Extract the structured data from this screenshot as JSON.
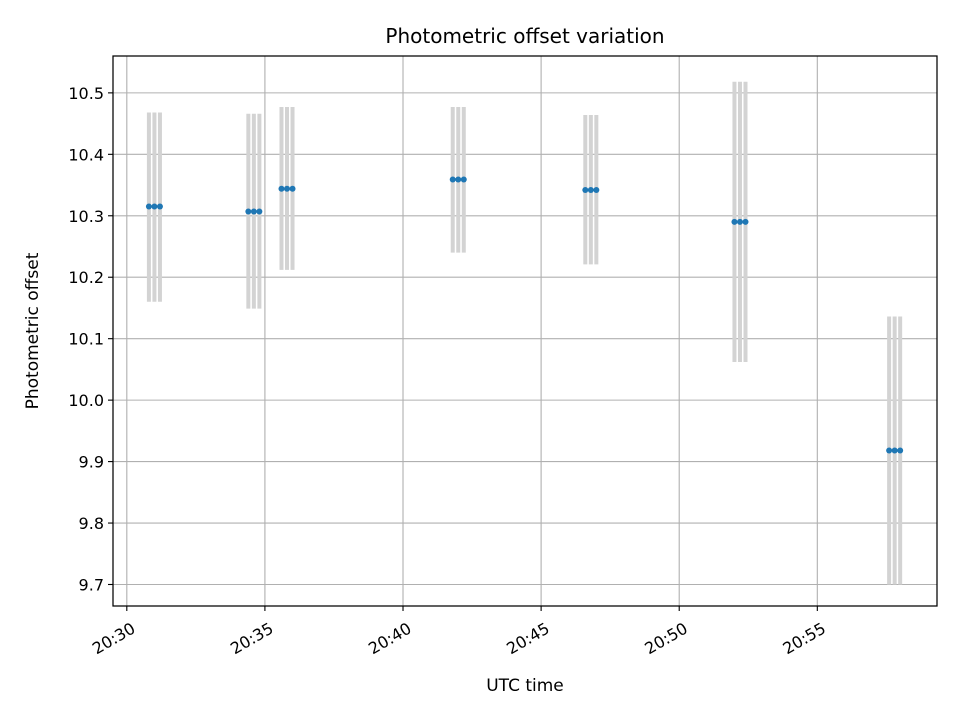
{
  "chart_data": {
    "type": "scatter",
    "title": "Photometric offset variation",
    "xlabel": "UTC time",
    "ylabel": "Photometric offset",
    "x_is_time": true,
    "xlim": [
      "20:29:30",
      "20:59:20"
    ],
    "ylim": [
      9.665,
      10.56
    ],
    "xticks": [
      "20:30",
      "20:35",
      "20:40",
      "20:45",
      "20:50",
      "20:55"
    ],
    "yticks": [
      9.7,
      9.8,
      9.9,
      10.0,
      10.1,
      10.2,
      10.3,
      10.4,
      10.5
    ],
    "ytick_labels": [
      "9.7",
      "9.8",
      "9.9",
      "10.0",
      "10.1",
      "10.2",
      "10.3",
      "10.4",
      "10.5"
    ],
    "grid": true,
    "point_color": "#1f77b4",
    "errorbar_color": "#d3d3d3",
    "groups": [
      {
        "x": [
          "20:30:48",
          "20:31:00",
          "20:31:12"
        ],
        "y": [
          10.315,
          10.315,
          10.315
        ],
        "err_low": [
          10.16,
          10.16,
          10.16
        ],
        "err_high": [
          10.468,
          10.468,
          10.468
        ]
      },
      {
        "x": [
          "20:34:24",
          "20:34:36",
          "20:34:48"
        ],
        "y": [
          10.307,
          10.307,
          10.307
        ],
        "err_low": [
          10.149,
          10.149,
          10.149
        ],
        "err_high": [
          10.466,
          10.466,
          10.466
        ]
      },
      {
        "x": [
          "20:35:36",
          "20:35:48",
          "20:36:00"
        ],
        "y": [
          10.344,
          10.344,
          10.344
        ],
        "err_low": [
          10.212,
          10.212,
          10.212
        ],
        "err_high": [
          10.477,
          10.477,
          10.477
        ]
      },
      {
        "x": [
          "20:41:48",
          "20:42:00",
          "20:42:12"
        ],
        "y": [
          10.359,
          10.359,
          10.359
        ],
        "err_low": [
          10.24,
          10.24,
          10.24
        ],
        "err_high": [
          10.477,
          10.477,
          10.477
        ]
      },
      {
        "x": [
          "20:46:36",
          "20:46:48",
          "20:47:00"
        ],
        "y": [
          10.342,
          10.342,
          10.342
        ],
        "err_low": [
          10.221,
          10.221,
          10.221
        ],
        "err_high": [
          10.464,
          10.464,
          10.464
        ]
      },
      {
        "x": [
          "20:52:00",
          "20:52:12",
          "20:52:24"
        ],
        "y": [
          10.29,
          10.29,
          10.29
        ],
        "err_low": [
          10.062,
          10.062,
          10.062
        ],
        "err_high": [
          10.518,
          10.518,
          10.518
        ]
      },
      {
        "x": [
          "20:57:36",
          "20:57:48",
          "20:58:00"
        ],
        "y": [
          9.918,
          9.918,
          9.918
        ],
        "err_low": [
          9.7,
          9.7,
          9.7
        ],
        "err_high": [
          10.136,
          10.136,
          10.136
        ]
      }
    ]
  }
}
